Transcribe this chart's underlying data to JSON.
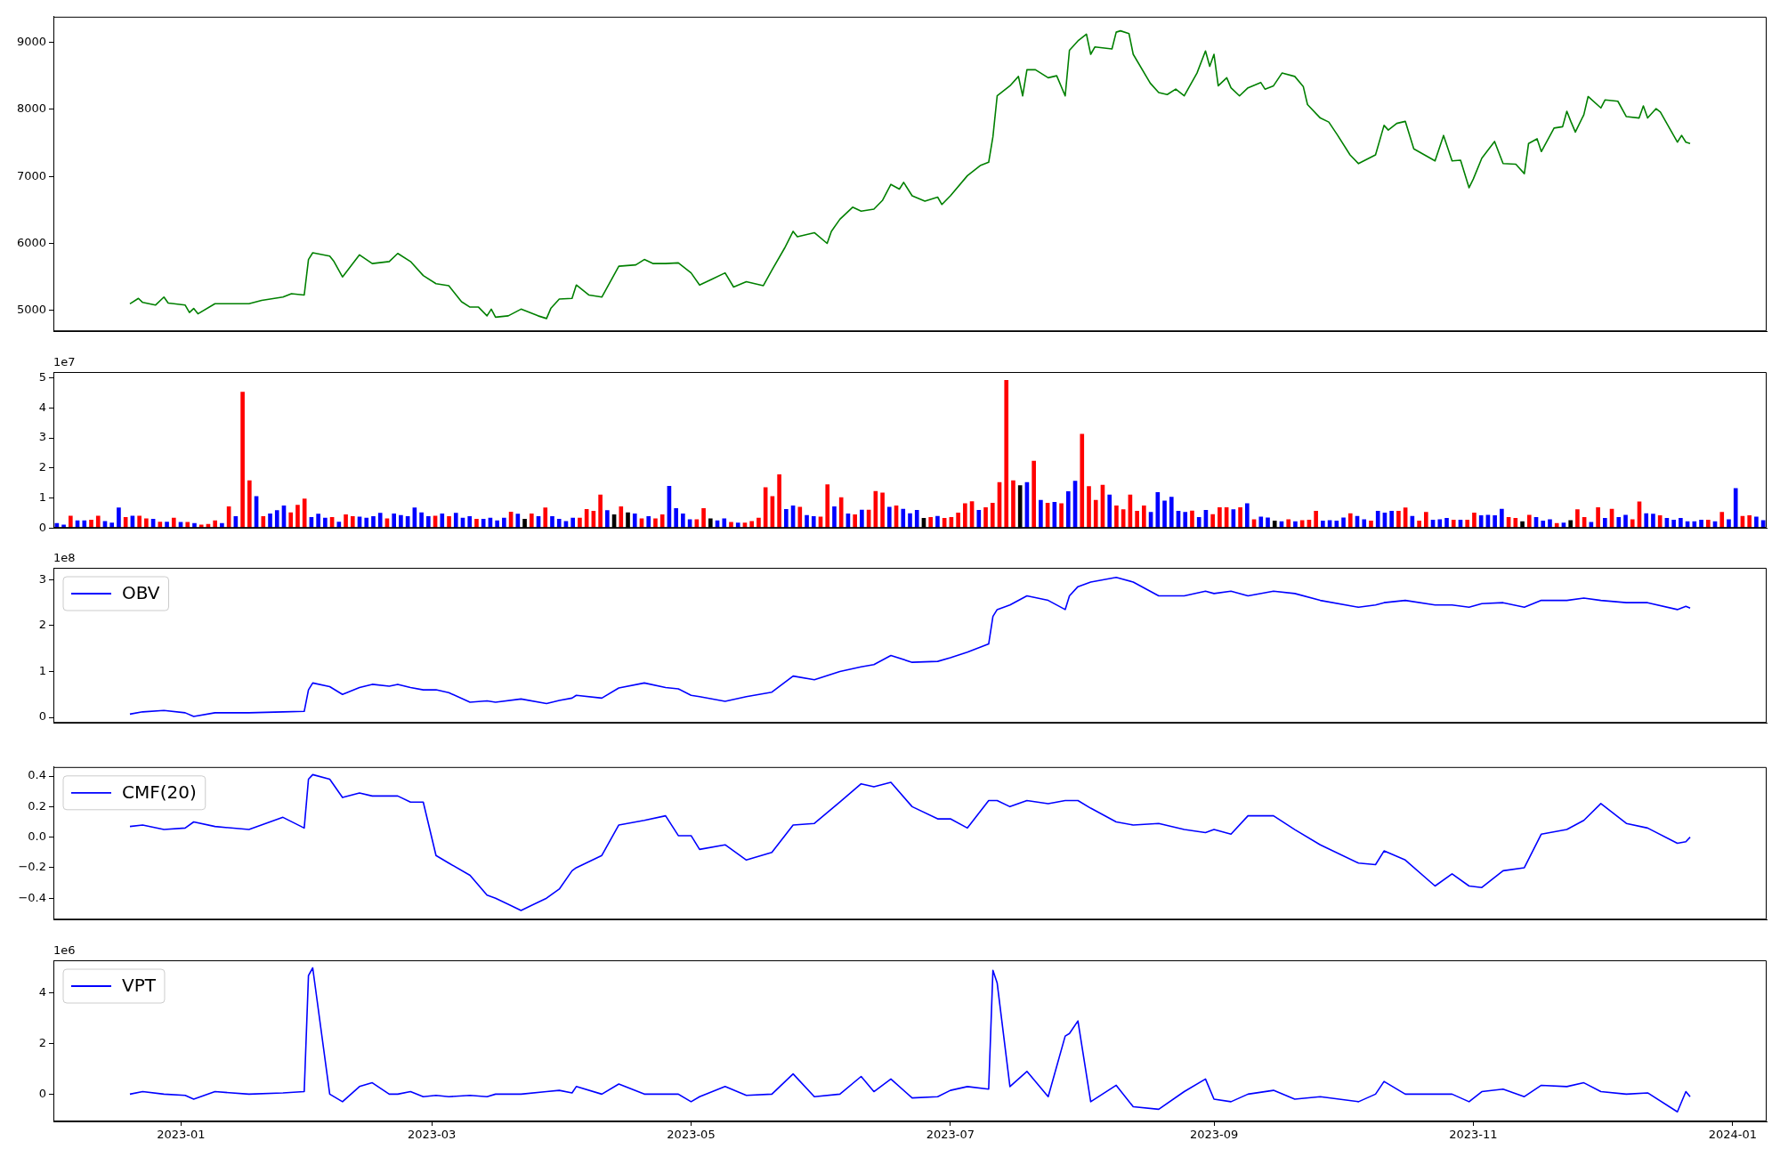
{
  "chart_data": [
    {
      "type": "line",
      "xlim": [
        "2022-12-02",
        "2024-01-09"
      ],
      "ylim": [
        4690,
        9380
      ],
      "yticks": [
        5000,
        6000,
        7000,
        8000,
        9000
      ],
      "tick_labels": "y",
      "x": [
        "2022-12-20",
        "2022-12-22",
        "2022-12-23",
        "2022-12-26",
        "2022-12-28",
        "2022-12-29",
        "2023-01-02",
        "2023-01-03",
        "2023-01-04",
        "2023-01-05",
        "2023-01-09",
        "2023-01-12",
        "2023-01-17",
        "2023-01-20",
        "2023-01-25",
        "2023-01-27",
        "2023-01-30",
        "2023-01-31",
        "2023-02-01",
        "2023-02-05",
        "2023-02-06",
        "2023-02-08",
        "2023-02-12",
        "2023-02-15",
        "2023-02-19",
        "2023-02-21",
        "2023-02-24",
        "2023-02-27",
        "2023-03-02",
        "2023-03-05",
        "2023-03-08",
        "2023-03-10",
        "2023-03-12",
        "2023-03-14",
        "2023-03-15",
        "2023-03-16",
        "2023-03-19",
        "2023-03-22",
        "2023-03-26",
        "2023-03-28",
        "2023-03-29",
        "2023-03-31",
        "2023-04-03",
        "2023-04-04",
        "2023-04-07",
        "2023-04-10",
        "2023-04-14",
        "2023-04-18",
        "2023-04-20",
        "2023-04-22",
        "2023-04-25",
        "2023-04-28",
        "2023-05-01",
        "2023-05-03",
        "2023-05-06",
        "2023-05-09",
        "2023-05-11",
        "2023-05-14",
        "2023-05-18",
        "2023-05-20",
        "2023-05-23",
        "2023-05-25",
        "2023-05-26",
        "2023-05-30",
        "2023-06-02",
        "2023-06-03",
        "2023-06-05",
        "2023-06-08",
        "2023-06-10",
        "2023-06-13",
        "2023-06-15",
        "2023-06-17",
        "2023-06-19",
        "2023-06-20",
        "2023-06-22",
        "2023-06-25",
        "2023-06-28",
        "2023-06-29",
        "2023-07-01",
        "2023-07-05",
        "2023-07-08",
        "2023-07-10",
        "2023-07-11",
        "2023-07-12",
        "2023-07-15",
        "2023-07-17",
        "2023-07-18",
        "2023-07-19",
        "2023-07-21",
        "2023-07-24",
        "2023-07-26",
        "2023-07-28",
        "2023-07-29",
        "2023-07-31",
        "2023-08-02",
        "2023-08-03",
        "2023-08-04",
        "2023-08-08",
        "2023-08-09",
        "2023-08-10",
        "2023-08-12",
        "2023-08-13",
        "2023-08-17",
        "2023-08-19",
        "2023-08-21",
        "2023-08-23",
        "2023-08-25",
        "2023-08-28",
        "2023-08-30",
        "2023-08-31",
        "2023-09-01",
        "2023-09-02",
        "2023-09-04",
        "2023-09-05",
        "2023-09-07",
        "2023-09-09",
        "2023-09-12",
        "2023-09-13",
        "2023-09-15",
        "2023-09-17",
        "2023-09-20",
        "2023-09-22",
        "2023-09-23",
        "2023-09-26",
        "2023-09-28",
        "2023-09-30",
        "2023-10-03",
        "2023-10-05",
        "2023-10-09",
        "2023-10-11",
        "2023-10-12",
        "2023-10-14",
        "2023-10-16",
        "2023-10-18",
        "2023-10-23",
        "2023-10-25",
        "2023-10-27",
        "2023-10-29",
        "2023-10-31",
        "2023-11-01",
        "2023-11-03",
        "2023-11-06",
        "2023-11-08",
        "2023-11-11",
        "2023-11-13",
        "2023-11-14",
        "2023-11-16",
        "2023-11-17",
        "2023-11-20",
        "2023-11-22",
        "2023-11-23",
        "2023-11-24",
        "2023-11-25",
        "2023-11-27",
        "2023-11-28",
        "2023-12-01",
        "2023-12-02",
        "2023-12-05",
        "2023-12-07",
        "2023-12-10",
        "2023-12-11",
        "2023-12-12",
        "2023-12-14",
        "2023-12-15",
        "2023-12-19",
        "2023-12-20",
        "2023-12-21",
        "2023-12-22"
      ],
      "series": [
        {
          "color": "#008000",
          "values": [
            5100,
            5180,
            5120,
            5080,
            5200,
            5110,
            5080,
            4970,
            5030,
            4950,
            5100,
            5100,
            5100,
            5150,
            5200,
            5250,
            5230,
            5760,
            5860,
            5810,
            5730,
            5500,
            5830,
            5700,
            5730,
            5850,
            5730,
            5520,
            5400,
            5370,
            5130,
            5050,
            5050,
            4920,
            5020,
            4900,
            4920,
            5020,
            4920,
            4880,
            5030,
            5170,
            5180,
            5380,
            5230,
            5200,
            5660,
            5680,
            5760,
            5700,
            5700,
            5710,
            5560,
            5380,
            5470,
            5560,
            5350,
            5430,
            5370,
            5600,
            5930,
            6180,
            6100,
            6160,
            6000,
            6180,
            6360,
            6540,
            6480,
            6510,
            6640,
            6880,
            6810,
            6910,
            6710,
            6630,
            6690,
            6580,
            6710,
            7010,
            7160,
            7210,
            7590,
            8200,
            8350,
            8490,
            8200,
            8590,
            8590,
            8470,
            8500,
            8200,
            8880,
            9020,
            9120,
            8820,
            8930,
            8900,
            9150,
            9170,
            9130,
            8820,
            8390,
            8250,
            8220,
            8300,
            8200,
            8540,
            8870,
            8640,
            8820,
            8350,
            8470,
            8320,
            8200,
            8320,
            8400,
            8300,
            8350,
            8540,
            8490,
            8340,
            8070,
            7870,
            7810,
            7620,
            7320,
            7190,
            7320,
            7760,
            7690,
            7790,
            7820,
            7410,
            7230,
            7610,
            7230,
            7240,
            6830,
            6960,
            7270,
            7520,
            7190,
            7180,
            7040,
            7490,
            7560,
            7370,
            7720,
            7740,
            7970,
            7810,
            7660,
            7920,
            8190,
            8020,
            8140,
            8120,
            7890,
            7870,
            8050,
            7870,
            8010,
            7960,
            7510,
            7610,
            7510,
            7490
          ]
        }
      ]
    },
    {
      "type": "bar",
      "tick_labels": "y",
      "ylim": [
        0,
        5.2
      ],
      "yticks": [
        0,
        1,
        2,
        3,
        4,
        5
      ],
      "annotations": [
        "1e7"
      ],
      "categories": [
        null,
        null,
        null,
        null,
        null,
        null,
        null,
        null,
        null,
        null,
        null,
        null,
        null,
        null,
        null,
        null,
        null,
        null,
        null,
        null,
        null,
        null,
        null,
        null,
        null,
        null,
        null,
        null,
        null,
        null,
        null,
        null,
        null,
        null,
        null,
        null,
        null,
        null,
        null,
        null,
        null,
        null,
        null,
        null,
        null,
        null,
        null,
        null,
        null,
        null,
        null,
        null,
        null,
        null,
        null,
        null,
        null,
        null,
        null,
        null,
        null,
        null,
        null,
        null,
        null,
        null,
        null,
        null,
        null,
        null,
        null,
        null,
        null,
        null,
        null,
        null,
        null,
        null,
        null,
        null,
        null,
        null,
        null,
        null,
        null,
        null,
        null,
        null,
        null,
        null,
        null,
        null,
        null,
        null,
        null,
        null,
        null,
        null,
        null,
        null,
        null,
        null,
        null,
        null,
        null,
        null,
        null,
        null,
        null,
        null,
        null,
        null,
        null,
        null,
        null,
        null,
        null,
        null,
        null,
        null,
        null,
        null,
        null,
        null,
        null,
        null,
        null,
        null,
        null,
        null,
        null,
        null,
        null,
        null,
        null,
        null,
        null,
        null,
        null,
        null,
        null,
        null,
        null,
        null,
        null,
        null,
        null,
        null,
        null,
        null,
        null,
        null,
        null,
        null,
        null,
        null,
        null,
        null,
        null,
        null,
        null,
        null,
        null,
        null,
        null,
        null,
        null,
        null,
        null,
        null,
        null,
        null,
        null,
        null,
        null,
        null,
        null,
        null,
        null,
        null,
        null,
        null,
        null,
        null,
        null,
        null,
        null,
        null,
        null,
        null,
        null,
        null,
        null,
        null,
        null,
        null,
        null,
        null,
        null,
        null,
        null,
        null,
        null,
        null,
        null,
        null,
        null,
        null,
        null,
        null,
        null,
        null,
        null,
        null,
        null,
        null,
        null,
        null,
        null,
        null,
        null,
        null,
        null,
        null,
        null,
        null,
        null,
        null,
        null,
        null,
        null,
        null,
        null,
        null,
        null,
        null,
        null,
        null,
        null,
        null,
        null,
        null,
        null,
        null,
        null,
        null,
        null,
        null,
        null
      ],
      "values": [
        0.16,
        0.11,
        0.41,
        0.25,
        0.25,
        0.27,
        0.41,
        0.23,
        0.18,
        0.68,
        0.36,
        0.41,
        0.41,
        0.32,
        0.3,
        0.21,
        0.21,
        0.34,
        0.2,
        0.2,
        0.16,
        0.11,
        0.13,
        0.25,
        0.16,
        0.72,
        0.39,
        4.54,
        1.59,
        1.06,
        0.39,
        0.48,
        0.59,
        0.75,
        0.52,
        0.77,
        0.98,
        0.36,
        0.47,
        0.34,
        0.36,
        0.21,
        0.45,
        0.39,
        0.38,
        0.34,
        0.39,
        0.5,
        0.32,
        0.48,
        0.43,
        0.39,
        0.68,
        0.52,
        0.39,
        0.41,
        0.48,
        0.39,
        0.5,
        0.34,
        0.39,
        0.3,
        0.3,
        0.34,
        0.25,
        0.34,
        0.54,
        0.47,
        0.3,
        0.48,
        0.39,
        0.68,
        0.39,
        0.3,
        0.23,
        0.34,
        0.34,
        0.63,
        0.57,
        1.11,
        0.59,
        0.45,
        0.72,
        0.52,
        0.48,
        0.32,
        0.39,
        0.32,
        0.45,
        1.4,
        0.66,
        0.48,
        0.29,
        0.29,
        0.66,
        0.32,
        0.25,
        0.32,
        0.2,
        0.18,
        0.18,
        0.23,
        0.34,
        1.36,
        1.06,
        1.79,
        0.63,
        0.75,
        0.7,
        0.43,
        0.39,
        0.38,
        1.45,
        0.72,
        1.02,
        0.48,
        0.45,
        0.61,
        0.61,
        1.23,
        1.18,
        0.7,
        0.75,
        0.64,
        0.49,
        0.6,
        0.33,
        0.36,
        0.4,
        0.33,
        0.36,
        0.51,
        0.82,
        0.89,
        0.6,
        0.69,
        0.84,
        1.53,
        4.93,
        1.59,
        1.42,
        1.53,
        2.24,
        0.93,
        0.84,
        0.87,
        0.82,
        1.22,
        1.57,
        3.14,
        1.39,
        0.93,
        1.44,
        1.11,
        0.75,
        0.62,
        1.11,
        0.57,
        0.75,
        0.53,
        1.19,
        0.91,
        1.04,
        0.57,
        0.53,
        0.58,
        0.36,
        0.6,
        0.46,
        0.69,
        0.69,
        0.62,
        0.69,
        0.82,
        0.29,
        0.38,
        0.35,
        0.24,
        0.22,
        0.29,
        0.22,
        0.26,
        0.27,
        0.57,
        0.24,
        0.26,
        0.24,
        0.35,
        0.49,
        0.4,
        0.29,
        0.24,
        0.57,
        0.51,
        0.57,
        0.57,
        0.68,
        0.4,
        0.24,
        0.53,
        0.27,
        0.29,
        0.33,
        0.27,
        0.27,
        0.27,
        0.51,
        0.42,
        0.44,
        0.42,
        0.64,
        0.36,
        0.33,
        0.22,
        0.44,
        0.36,
        0.24,
        0.29,
        0.16,
        0.18,
        0.26,
        0.62,
        0.36,
        0.2,
        0.69,
        0.33,
        0.64,
        0.36,
        0.44,
        0.29,
        0.88,
        0.49,
        0.47,
        0.42,
        0.33,
        0.27,
        0.33,
        0.22,
        0.22,
        0.27,
        0.27,
        0.22,
        0.53,
        0.29,
        1.33,
        0.4,
        0.42,
        0.38,
        0.26
      ],
      "colors": [
        "#0000ff",
        "#0000ff",
        "#ff0000",
        "#0000ff",
        "#0000ff",
        "#ff0000",
        "#ff0000",
        "#0000ff",
        "#0000ff",
        "#0000ff",
        "#ff0000",
        "#0000ff",
        "#ff0000",
        "#ff0000",
        "#0000ff",
        "#ff0000",
        "#0000ff",
        "#ff0000",
        "#0000ff",
        "#ff0000",
        "#0000ff",
        "#ff0000",
        "#ff0000",
        "#ff0000",
        "#0000ff",
        "#ff0000",
        "#0000ff",
        "#ff0000",
        "#ff0000",
        "#0000ff",
        "#ff0000",
        "#0000ff",
        "#0000ff",
        "#0000ff",
        "#ff0000",
        "#ff0000",
        "#ff0000",
        "#0000ff",
        "#0000ff",
        "#0000ff",
        "#ff0000",
        "#0000ff",
        "#ff0000",
        "#ff0000",
        "#0000ff",
        "#0000ff",
        "#0000ff",
        "#0000ff",
        "#ff0000",
        "#0000ff",
        "#0000ff",
        "#0000ff",
        "#0000ff",
        "#0000ff",
        "#0000ff",
        "#ff0000",
        "#0000ff",
        "#ff0000",
        "#0000ff",
        "#0000ff",
        "#0000ff",
        "#ff0000",
        "#0000ff",
        "#0000ff",
        "#0000ff",
        "#0000ff",
        "#ff0000",
        "#0000ff",
        "#000000",
        "#ff0000",
        "#0000ff",
        "#ff0000",
        "#0000ff",
        "#0000ff",
        "#0000ff",
        "#0000ff",
        "#ff0000",
        "#ff0000",
        "#ff0000",
        "#ff0000",
        "#0000ff",
        "#000000",
        "#ff0000",
        "#000000",
        "#0000ff",
        "#ff0000",
        "#0000ff",
        "#ff0000",
        "#ff0000",
        "#0000ff",
        "#0000ff",
        "#0000ff",
        "#0000ff",
        "#ff0000",
        "#ff0000",
        "#000000",
        "#0000ff",
        "#0000ff",
        "#ff0000",
        "#0000ff",
        "#ff0000",
        "#ff0000",
        "#ff0000",
        "#ff0000",
        "#ff0000",
        "#ff0000",
        "#0000ff",
        "#0000ff",
        "#ff0000",
        "#0000ff",
        "#0000ff",
        "#ff0000",
        "#ff0000",
        "#0000ff",
        "#ff0000",
        "#0000ff",
        "#ff0000",
        "#0000ff",
        "#ff0000",
        "#ff0000",
        "#ff0000",
        "#0000ff",
        "#ff0000",
        "#0000ff",
        "#0000ff",
        "#0000ff",
        "#000000",
        "#ff0000",
        "#0000ff",
        "#ff0000",
        "#ff0000",
        "#ff0000",
        "#ff0000",
        "#ff0000",
        "#0000ff",
        "#ff0000",
        "#ff0000",
        "#ff0000",
        "#ff0000",
        "#ff0000",
        "#000000",
        "#0000ff",
        "#ff0000",
        "#0000ff",
        "#ff0000",
        "#0000ff",
        "#ff0000",
        "#0000ff",
        "#0000ff",
        "#ff0000",
        "#ff0000",
        "#ff0000",
        "#ff0000",
        "#0000ff",
        "#ff0000",
        "#ff0000",
        "#ff0000",
        "#ff0000",
        "#ff0000",
        "#0000ff",
        "#0000ff",
        "#0000ff",
        "#0000ff",
        "#0000ff",
        "#0000ff",
        "#ff0000",
        "#0000ff",
        "#0000ff",
        "#ff0000",
        "#ff0000",
        "#ff0000",
        "#0000ff",
        "#ff0000",
        "#0000ff",
        "#ff0000",
        "#0000ff",
        "#0000ff",
        "#000000",
        "#0000ff",
        "#ff0000",
        "#0000ff",
        "#ff0000",
        "#ff0000",
        "#ff0000",
        "#0000ff",
        "#0000ff",
        "#0000ff",
        "#0000ff",
        "#ff0000",
        "#0000ff",
        "#0000ff",
        "#ff0000",
        "#0000ff",
        "#0000ff",
        "#0000ff",
        "#ff0000",
        "#ff0000",
        "#0000ff",
        "#ff0000",
        "#ff0000",
        "#0000ff",
        "#0000ff",
        "#0000ff",
        "#ff0000",
        "#0000ff",
        "#ff0000",
        "#ff0000",
        "#0000ff",
        "#0000ff",
        "#0000ff",
        "#0000ff",
        "#ff0000",
        "#ff0000",
        "#000000",
        "#ff0000",
        "#0000ff",
        "#0000ff",
        "#0000ff",
        "#ff0000",
        "#0000ff",
        "#000000",
        "#ff0000",
        "#ff0000",
        "#0000ff",
        "#ff0000",
        "#0000ff",
        "#ff0000",
        "#0000ff",
        "#0000ff",
        "#ff0000",
        "#ff0000",
        "#0000ff",
        "#0000ff",
        "#ff0000",
        "#0000ff",
        "#0000ff",
        "#0000ff",
        "#0000ff",
        "#0000ff",
        "#0000ff",
        "#ff0000",
        "#0000ff",
        "#ff0000",
        "#0000ff",
        "#0000ff",
        "#ff0000",
        "#ff0000",
        "#0000ff",
        "#0000ff"
      ]
    },
    {
      "type": "line",
      "xlim": [
        "2022-12-02",
        "2024-01-09"
      ],
      "ylim": [
        -0.12,
        3.26
      ],
      "yticks": [
        0,
        1,
        2,
        3
      ],
      "annotations": [
        "1e8"
      ],
      "tick_labels": "y",
      "legend": "top left",
      "x": [
        "2022-12-20",
        "2022-12-23",
        "2022-12-28",
        "2023-01-02",
        "2023-01-04",
        "2023-01-09",
        "2023-01-17",
        "2023-01-25",
        "2023-01-30",
        "2023-01-31",
        "2023-02-01",
        "2023-02-05",
        "2023-02-08",
        "2023-02-12",
        "2023-02-15",
        "2023-02-19",
        "2023-02-21",
        "2023-02-24",
        "2023-02-27",
        "2023-03-02",
        "2023-03-05",
        "2023-03-10",
        "2023-03-14",
        "2023-03-16",
        "2023-03-22",
        "2023-03-28",
        "2023-03-31",
        "2023-04-03",
        "2023-04-04",
        "2023-04-10",
        "2023-04-14",
        "2023-04-20",
        "2023-04-25",
        "2023-04-28",
        "2023-05-01",
        "2023-05-03",
        "2023-05-09",
        "2023-05-14",
        "2023-05-20",
        "2023-05-25",
        "2023-05-30",
        "2023-06-05",
        "2023-06-10",
        "2023-06-13",
        "2023-06-17",
        "2023-06-22",
        "2023-06-28",
        "2023-07-01",
        "2023-07-05",
        "2023-07-10",
        "2023-07-11",
        "2023-07-12",
        "2023-07-15",
        "2023-07-19",
        "2023-07-24",
        "2023-07-28",
        "2023-07-29",
        "2023-07-31",
        "2023-08-03",
        "2023-08-09",
        "2023-08-13",
        "2023-08-19",
        "2023-08-25",
        "2023-08-30",
        "2023-09-01",
        "2023-09-05",
        "2023-09-09",
        "2023-09-15",
        "2023-09-20",
        "2023-09-26",
        "2023-10-05",
        "2023-10-09",
        "2023-10-11",
        "2023-10-16",
        "2023-10-23",
        "2023-10-27",
        "2023-10-31",
        "2023-11-03",
        "2023-11-08",
        "2023-11-13",
        "2023-11-17",
        "2023-11-23",
        "2023-11-27",
        "2023-12-01",
        "2023-12-07",
        "2023-12-12",
        "2023-12-19",
        "2023-12-21",
        "2023-12-22"
      ],
      "series": [
        {
          "name": "OBV",
          "color": "#0000ff",
          "values": [
            0.07,
            0.12,
            0.15,
            0.1,
            0.02,
            0.1,
            0.1,
            0.12,
            0.13,
            0.6,
            0.75,
            0.67,
            0.5,
            0.65,
            0.72,
            0.68,
            0.72,
            0.65,
            0.6,
            0.6,
            0.54,
            0.33,
            0.36,
            0.33,
            0.4,
            0.3,
            0.37,
            0.42,
            0.48,
            0.42,
            0.64,
            0.75,
            0.65,
            0.62,
            0.48,
            0.45,
            0.35,
            0.45,
            0.55,
            0.9,
            0.82,
            1.0,
            1.1,
            1.15,
            1.35,
            1.2,
            1.22,
            1.3,
            1.42,
            1.6,
            2.2,
            2.35,
            2.45,
            2.65,
            2.55,
            2.35,
            2.65,
            2.85,
            2.95,
            3.05,
            2.95,
            2.65,
            2.65,
            2.75,
            2.7,
            2.75,
            2.65,
            2.75,
            2.7,
            2.55,
            2.4,
            2.45,
            2.5,
            2.55,
            2.45,
            2.45,
            2.4,
            2.48,
            2.5,
            2.4,
            2.55,
            2.55,
            2.6,
            2.55,
            2.5,
            2.5,
            2.35,
            2.42,
            2.38
          ]
        }
      ]
    },
    {
      "type": "line",
      "xlim": [
        "2022-12-02",
        "2024-01-09"
      ],
      "ylim": [
        -0.54,
        0.46
      ],
      "yticks": [
        {
          "value": -0.4,
          "label": "−0.4"
        },
        {
          "value": -0.2,
          "label": "−0.2"
        },
        {
          "value": 0,
          "label": "0.0"
        },
        0.2,
        0.4
      ],
      "tick_labels": "y",
      "legend": "top left",
      "x": [
        "2022-12-20",
        "2022-12-23",
        "2022-12-28",
        "2023-01-02",
        "2023-01-04",
        "2023-01-09",
        "2023-01-17",
        "2023-01-25",
        "2023-01-30",
        "2023-01-31",
        "2023-02-01",
        "2023-02-05",
        "2023-02-08",
        "2023-02-12",
        "2023-02-15",
        "2023-02-19",
        "2023-02-21",
        "2023-02-24",
        "2023-02-27",
        "2023-03-02",
        "2023-03-05",
        "2023-03-10",
        "2023-03-14",
        "2023-03-16",
        "2023-03-22",
        "2023-03-28",
        "2023-03-31",
        "2023-04-03",
        "2023-04-04",
        "2023-04-10",
        "2023-04-14",
        "2023-04-20",
        "2023-04-25",
        "2023-04-28",
        "2023-05-01",
        "2023-05-03",
        "2023-05-09",
        "2023-05-14",
        "2023-05-20",
        "2023-05-25",
        "2023-05-30",
        "2023-06-05",
        "2023-06-10",
        "2023-06-13",
        "2023-06-17",
        "2023-06-22",
        "2023-06-28",
        "2023-07-01",
        "2023-07-05",
        "2023-07-10",
        "2023-07-11",
        "2023-07-12",
        "2023-07-15",
        "2023-07-19",
        "2023-07-24",
        "2023-07-28",
        "2023-07-29",
        "2023-07-31",
        "2023-08-03",
        "2023-08-09",
        "2023-08-13",
        "2023-08-19",
        "2023-08-25",
        "2023-08-30",
        "2023-09-01",
        "2023-09-05",
        "2023-09-09",
        "2023-09-15",
        "2023-09-20",
        "2023-09-26",
        "2023-10-05",
        "2023-10-09",
        "2023-10-11",
        "2023-10-16",
        "2023-10-23",
        "2023-10-27",
        "2023-10-31",
        "2023-11-03",
        "2023-11-08",
        "2023-11-13",
        "2023-11-17",
        "2023-11-23",
        "2023-11-27",
        "2023-12-01",
        "2023-12-07",
        "2023-12-12",
        "2023-12-19",
        "2023-12-21",
        "2023-12-22"
      ],
      "series": [
        {
          "name": "CMF(20)",
          "color": "#0000ff",
          "values": [
            0.07,
            0.08,
            0.05,
            0.06,
            0.1,
            0.07,
            0.05,
            0.13,
            0.06,
            0.38,
            0.41,
            0.38,
            0.26,
            0.29,
            0.27,
            0.27,
            0.27,
            0.23,
            0.23,
            -0.12,
            -0.17,
            -0.25,
            -0.38,
            -0.4,
            -0.48,
            -0.4,
            -0.34,
            -0.22,
            -0.2,
            -0.12,
            0.08,
            0.11,
            0.14,
            0.01,
            0.01,
            -0.08,
            -0.05,
            -0.15,
            -0.1,
            0.08,
            0.09,
            0.23,
            0.35,
            0.33,
            0.36,
            0.2,
            0.12,
            0.12,
            0.06,
            0.24,
            0.24,
            0.24,
            0.2,
            0.24,
            0.22,
            0.24,
            0.24,
            0.24,
            0.19,
            0.1,
            0.08,
            0.09,
            0.05,
            0.03,
            0.05,
            0.02,
            0.14,
            0.14,
            0.05,
            -0.05,
            -0.17,
            -0.18,
            -0.09,
            -0.15,
            -0.32,
            -0.24,
            -0.32,
            -0.33,
            -0.22,
            -0.2,
            0.02,
            0.05,
            0.11,
            0.22,
            0.09,
            0.06,
            -0.04,
            -0.03,
            0
          ]
        }
      ]
    },
    {
      "type": "line",
      "xlim": [
        "2022-12-02",
        "2024-01-09"
      ],
      "ylim": [
        -1.08,
        5.3
      ],
      "yticks": [
        0,
        2,
        4
      ],
      "annotations": [
        "1e6"
      ],
      "legend": "top left",
      "xticks": [
        {
          "value": "2023-01-01",
          "label": "2023-01"
        },
        {
          "value": "2023-03-01",
          "label": "2023-03"
        },
        {
          "value": "2023-05-01",
          "label": "2023-05"
        },
        {
          "value": "2023-07-01",
          "label": "2023-07"
        },
        {
          "value": "2023-09-01",
          "label": "2023-09"
        },
        {
          "value": "2023-11-01",
          "label": "2023-11"
        },
        {
          "value": "2024-01-01",
          "label": "2024-01"
        }
      ],
      "x": [
        "2022-12-20",
        "2022-12-23",
        "2022-12-28",
        "2023-01-02",
        "2023-01-04",
        "2023-01-09",
        "2023-01-17",
        "2023-01-25",
        "2023-01-30",
        "2023-01-31",
        "2023-02-01",
        "2023-02-05",
        "2023-02-08",
        "2023-02-12",
        "2023-02-15",
        "2023-02-19",
        "2023-02-21",
        "2023-02-24",
        "2023-02-27",
        "2023-03-02",
        "2023-03-05",
        "2023-03-10",
        "2023-03-14",
        "2023-03-16",
        "2023-03-22",
        "2023-03-28",
        "2023-03-31",
        "2023-04-03",
        "2023-04-04",
        "2023-04-10",
        "2023-04-14",
        "2023-04-20",
        "2023-04-25",
        "2023-04-28",
        "2023-05-01",
        "2023-05-03",
        "2023-05-09",
        "2023-05-14",
        "2023-05-20",
        "2023-05-25",
        "2023-05-30",
        "2023-06-05",
        "2023-06-10",
        "2023-06-13",
        "2023-06-17",
        "2023-06-22",
        "2023-06-28",
        "2023-07-01",
        "2023-07-05",
        "2023-07-10",
        "2023-07-11",
        "2023-07-12",
        "2023-07-15",
        "2023-07-19",
        "2023-07-24",
        "2023-07-28",
        "2023-07-29",
        "2023-07-31",
        "2023-08-03",
        "2023-08-09",
        "2023-08-13",
        "2023-08-19",
        "2023-08-25",
        "2023-08-30",
        "2023-09-01",
        "2023-09-05",
        "2023-09-09",
        "2023-09-15",
        "2023-09-20",
        "2023-09-26",
        "2023-10-05",
        "2023-10-09",
        "2023-10-11",
        "2023-10-16",
        "2023-10-23",
        "2023-10-27",
        "2023-10-31",
        "2023-11-03",
        "2023-11-08",
        "2023-11-13",
        "2023-11-17",
        "2023-11-23",
        "2023-11-27",
        "2023-12-01",
        "2023-12-07",
        "2023-12-12",
        "2023-12-19",
        "2023-12-21",
        "2023-12-22"
      ],
      "series": [
        {
          "name": "VPT",
          "color": "#0000ff",
          "values": [
            0,
            0.1,
            0,
            -0.05,
            -0.2,
            0.1,
            0,
            0.05,
            0.1,
            4.7,
            5.0,
            0,
            -0.3,
            0.3,
            0.45,
            0,
            0,
            0.1,
            -0.1,
            -0.05,
            -0.1,
            -0.05,
            -0.1,
            0,
            0,
            0.1,
            0.15,
            0.05,
            0.3,
            0,
            0.4,
            0,
            0,
            0,
            -0.3,
            -0.1,
            0.3,
            -0.05,
            0,
            0.8,
            -0.1,
            0,
            0.7,
            0.1,
            0.6,
            -0.15,
            -0.1,
            0.15,
            0.3,
            0.2,
            4.9,
            4.4,
            0.3,
            0.9,
            -0.1,
            2.3,
            2.4,
            2.9,
            -0.3,
            0.35,
            -0.5,
            -0.6,
            0.1,
            0.6,
            -0.2,
            -0.3,
            0,
            0.15,
            -0.2,
            -0.1,
            -0.3,
            0,
            0.5,
            0,
            0,
            0,
            -0.3,
            0.1,
            0.2,
            -0.1,
            0.35,
            0.3,
            0.45,
            0.1,
            0,
            0.05,
            -0.7,
            0.1,
            -0.1
          ]
        }
      ]
    }
  ]
}
